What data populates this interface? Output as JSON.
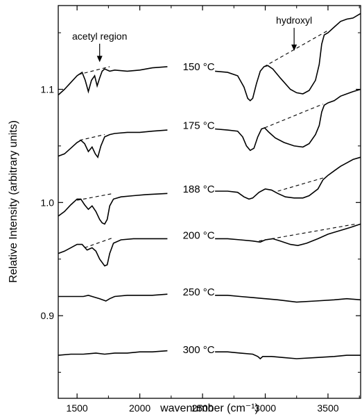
{
  "chart_data": {
    "type": "line",
    "title": "",
    "xlabel": "wavenumber (cm⁻¹)",
    "ylabel": "Relative Intensity (arbitrary units)",
    "xlim": [
      1350,
      3760
    ],
    "ylim": [
      0.827,
      1.174
    ],
    "xticks": [
      1500,
      2000,
      2500,
      3000,
      3500
    ],
    "xtick_labels": [
      "1500",
      "2000",
      "2500",
      "3000",
      "3500"
    ],
    "yticks": [
      0.9,
      1.0,
      1.1
    ],
    "ytick_labels": [
      "0.9",
      "1.0",
      "1.1"
    ],
    "grid": false,
    "legend": "none",
    "annotations": [
      {
        "text": "acetyl region",
        "x": 1680,
        "y": 1.144,
        "arrow_to": [
          1680,
          1.124
        ]
      },
      {
        "text": "hydroxyl",
        "x": 3230,
        "y": 1.158,
        "arrow_to": [
          3230,
          1.134
        ]
      }
    ],
    "series": [
      {
        "name": "150 °C",
        "label_at": [
          2470,
          1.12
        ],
        "segments": [
          [
            [
              1350,
              1.095
            ],
            [
              1400,
              1.1
            ],
            [
              1450,
              1.106
            ],
            [
              1500,
              1.112
            ],
            [
              1540,
              1.115
            ],
            [
              1565,
              1.108
            ],
            [
              1590,
              1.098
            ],
            [
              1615,
              1.108
            ],
            [
              1640,
              1.112
            ],
            [
              1660,
              1.103
            ],
            [
              1680,
              1.11
            ],
            [
              1700,
              1.116
            ],
            [
              1720,
              1.118
            ],
            [
              1760,
              1.116
            ],
            [
              1800,
              1.117
            ],
            [
              1900,
              1.116
            ],
            [
              2000,
              1.117
            ],
            [
              2100,
              1.119
            ],
            [
              2220,
              1.12
            ]
          ],
          [
            [
              2600,
              1.116
            ],
            [
              2700,
              1.115
            ],
            [
              2780,
              1.112
            ],
            [
              2830,
              1.102
            ],
            [
              2860,
              1.092
            ],
            [
              2880,
              1.09
            ],
            [
              2900,
              1.092
            ],
            [
              2930,
              1.105
            ],
            [
              2960,
              1.116
            ],
            [
              2990,
              1.12
            ],
            [
              3020,
              1.121
            ],
            [
              3060,
              1.118
            ],
            [
              3120,
              1.11
            ],
            [
              3200,
              1.1
            ],
            [
              3250,
              1.097
            ],
            [
              3300,
              1.096
            ],
            [
              3350,
              1.099
            ],
            [
              3400,
              1.108
            ],
            [
              3430,
              1.122
            ],
            [
              3450,
              1.14
            ],
            [
              3470,
              1.148
            ],
            [
              3500,
              1.15
            ],
            [
              3550,
              1.155
            ],
            [
              3600,
              1.16
            ],
            [
              3650,
              1.162
            ],
            [
              3700,
              1.163
            ],
            [
              3760,
              1.167
            ]
          ]
        ],
        "baselines": [
          [
            [
              1510,
              1.113
            ],
            [
              1760,
              1.12
            ]
          ],
          [
            [
              2990,
              1.12
            ],
            [
              3500,
              1.152
            ]
          ]
        ]
      },
      {
        "name": "175 °C",
        "label_at": [
          2470,
          1.068
        ],
        "segments": [
          [
            [
              1350,
              1.041
            ],
            [
              1400,
              1.043
            ],
            [
              1450,
              1.048
            ],
            [
              1500,
              1.053
            ],
            [
              1530,
              1.055
            ],
            [
              1560,
              1.052
            ],
            [
              1590,
              1.045
            ],
            [
              1620,
              1.049
            ],
            [
              1645,
              1.043
            ],
            [
              1665,
              1.04
            ],
            [
              1690,
              1.05
            ],
            [
              1720,
              1.058
            ],
            [
              1760,
              1.06
            ],
            [
              1800,
              1.061
            ],
            [
              1900,
              1.062
            ],
            [
              2000,
              1.062
            ],
            [
              2100,
              1.063
            ],
            [
              2220,
              1.064
            ]
          ],
          [
            [
              2600,
              1.065
            ],
            [
              2700,
              1.064
            ],
            [
              2780,
              1.063
            ],
            [
              2820,
              1.058
            ],
            [
              2850,
              1.05
            ],
            [
              2880,
              1.046
            ],
            [
              2910,
              1.048
            ],
            [
              2940,
              1.058
            ],
            [
              2970,
              1.065
            ],
            [
              2995,
              1.066
            ],
            [
              3030,
              1.062
            ],
            [
              3080,
              1.057
            ],
            [
              3150,
              1.053
            ],
            [
              3230,
              1.05
            ],
            [
              3300,
              1.049
            ],
            [
              3350,
              1.052
            ],
            [
              3400,
              1.06
            ],
            [
              3430,
              1.068
            ],
            [
              3450,
              1.08
            ],
            [
              3470,
              1.086
            ],
            [
              3500,
              1.088
            ],
            [
              3550,
              1.09
            ],
            [
              3600,
              1.094
            ],
            [
              3650,
              1.096
            ],
            [
              3700,
              1.098
            ],
            [
              3760,
              1.1
            ]
          ]
        ],
        "baselines": [
          [
            [
              1520,
              1.055
            ],
            [
              1720,
              1.06
            ]
          ],
          [
            [
              2995,
              1.066
            ],
            [
              3460,
              1.087
            ]
          ]
        ]
      },
      {
        "name": "188 °C",
        "label_at": [
          2470,
          1.012
        ],
        "segments": [
          [
            [
              1350,
              0.988
            ],
            [
              1400,
              0.992
            ],
            [
              1450,
              0.998
            ],
            [
              1500,
              1.003
            ],
            [
              1530,
              1.003
            ],
            [
              1560,
              0.998
            ],
            [
              1590,
              0.994
            ],
            [
              1620,
              0.997
            ],
            [
              1650,
              0.992
            ],
            [
              1680,
              0.985
            ],
            [
              1700,
              0.982
            ],
            [
              1720,
              0.981
            ],
            [
              1740,
              0.985
            ],
            [
              1760,
              0.997
            ],
            [
              1790,
              1.003
            ],
            [
              1850,
              1.005
            ],
            [
              1950,
              1.006
            ],
            [
              2050,
              1.007
            ],
            [
              2220,
              1.008
            ]
          ],
          [
            [
              2600,
              1.01
            ],
            [
              2700,
              1.01
            ],
            [
              2780,
              1.009
            ],
            [
              2830,
              1.005
            ],
            [
              2870,
              1.003
            ],
            [
              2900,
              1.004
            ],
            [
              2950,
              1.009
            ],
            [
              3000,
              1.012
            ],
            [
              3050,
              1.011
            ],
            [
              3100,
              1.008
            ],
            [
              3160,
              1.005
            ],
            [
              3230,
              1.004
            ],
            [
              3300,
              1.004
            ],
            [
              3350,
              1.006
            ],
            [
              3420,
              1.012
            ],
            [
              3460,
              1.02
            ],
            [
              3500,
              1.024
            ],
            [
              3550,
              1.028
            ],
            [
              3600,
              1.032
            ],
            [
              3650,
              1.035
            ],
            [
              3700,
              1.038
            ],
            [
              3760,
              1.04
            ]
          ]
        ],
        "baselines": [
          [
            [
              1500,
              1.002
            ],
            [
              1790,
              1.008
            ]
          ],
          [
            [
              3100,
              1.01
            ],
            [
              3470,
              1.022
            ]
          ]
        ]
      },
      {
        "name": "200 °C",
        "label_at": [
          2470,
          0.971
        ],
        "segments": [
          [
            [
              1350,
              0.955
            ],
            [
              1400,
              0.957
            ],
            [
              1450,
              0.96
            ],
            [
              1500,
              0.963
            ],
            [
              1540,
              0.963
            ],
            [
              1580,
              0.958
            ],
            [
              1620,
              0.96
            ],
            [
              1650,
              0.957
            ],
            [
              1680,
              0.95
            ],
            [
              1720,
              0.944
            ],
            [
              1740,
              0.945
            ],
            [
              1760,
              0.955
            ],
            [
              1790,
              0.964
            ],
            [
              1850,
              0.967
            ],
            [
              1950,
              0.968
            ],
            [
              2050,
              0.968
            ],
            [
              2220,
              0.968
            ]
          ],
          [
            [
              2600,
              0.968
            ],
            [
              2700,
              0.968
            ],
            [
              2800,
              0.967
            ],
            [
              2900,
              0.966
            ],
            [
              2960,
              0.965
            ],
            [
              3000,
              0.967
            ],
            [
              3060,
              0.968
            ],
            [
              3120,
              0.966
            ],
            [
              3200,
              0.963
            ],
            [
              3260,
              0.962
            ],
            [
              3330,
              0.964
            ],
            [
              3420,
              0.968
            ],
            [
              3500,
              0.972
            ],
            [
              3560,
              0.974
            ],
            [
              3620,
              0.976
            ],
            [
              3680,
              0.978
            ],
            [
              3760,
              0.981
            ]
          ]
        ],
        "baselines": [
          [
            [
              1560,
              0.96
            ],
            [
              1790,
              0.969
            ]
          ],
          [
            [
              2950,
              0.966
            ],
            [
              3720,
              0.981
            ]
          ]
        ]
      },
      {
        "name": "250 °C",
        "label_at": [
          2470,
          0.921
        ],
        "segments": [
          [
            [
              1350,
              0.917
            ],
            [
              1450,
              0.917
            ],
            [
              1550,
              0.917
            ],
            [
              1590,
              0.918
            ],
            [
              1620,
              0.917
            ],
            [
              1680,
              0.915
            ],
            [
              1730,
              0.913
            ],
            [
              1760,
              0.915
            ],
            [
              1800,
              0.917
            ],
            [
              1900,
              0.918
            ],
            [
              2000,
              0.918
            ],
            [
              2100,
              0.918
            ],
            [
              2220,
              0.919
            ]
          ],
          [
            [
              2600,
              0.918
            ],
            [
              2700,
              0.918
            ],
            [
              2800,
              0.917
            ],
            [
              2900,
              0.916
            ],
            [
              3000,
              0.915
            ],
            [
              3100,
              0.914
            ],
            [
              3250,
              0.912
            ],
            [
              3400,
              0.913
            ],
            [
              3550,
              0.914
            ],
            [
              3650,
              0.915
            ],
            [
              3760,
              0.914
            ]
          ]
        ],
        "baselines": []
      },
      {
        "name": "300 °C",
        "label_at": [
          2470,
          0.87
        ],
        "segments": [
          [
            [
              1350,
              0.865
            ],
            [
              1450,
              0.866
            ],
            [
              1550,
              0.866
            ],
            [
              1650,
              0.867
            ],
            [
              1720,
              0.866
            ],
            [
              1800,
              0.867
            ],
            [
              1900,
              0.867
            ],
            [
              2000,
              0.868
            ],
            [
              2100,
              0.868
            ],
            [
              2220,
              0.869
            ]
          ],
          [
            [
              2600,
              0.868
            ],
            [
              2700,
              0.868
            ],
            [
              2800,
              0.867
            ],
            [
              2900,
              0.866
            ],
            [
              2940,
              0.864
            ],
            [
              2960,
              0.862
            ],
            [
              2980,
              0.864
            ],
            [
              3050,
              0.864
            ],
            [
              3150,
              0.863
            ],
            [
              3250,
              0.862
            ],
            [
              3400,
              0.863
            ],
            [
              3550,
              0.864
            ],
            [
              3650,
              0.865
            ],
            [
              3760,
              0.865
            ]
          ]
        ],
        "baselines": []
      }
    ]
  }
}
